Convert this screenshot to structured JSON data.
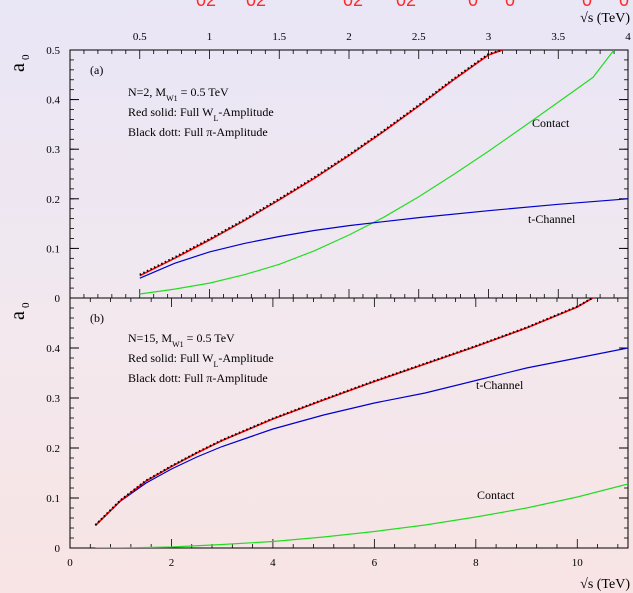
{
  "header_fragments": [
    "02",
    "02",
    "02",
    "02",
    "0",
    "0",
    "0",
    "0"
  ],
  "top_axis": {
    "label": "√s (TeV)",
    "ticks": [
      "0.5",
      "1",
      "1.5",
      "2",
      "2.5",
      "3",
      "3.5",
      "4"
    ]
  },
  "bottom_axis": {
    "label": "√s (TeV)",
    "ticks": [
      "0",
      "2",
      "4",
      "6",
      "8",
      "10"
    ]
  },
  "colors": {
    "red": "#ff0000",
    "black": "#000000",
    "blue": "#0000cc",
    "green": "#22dd22"
  },
  "chart_data": [
    {
      "type": "line",
      "panel": "a",
      "ylabel": "a",
      "ylabel_sub": "0",
      "xlim": [
        0,
        4
      ],
      "ylim": [
        0,
        0.5
      ],
      "yticks": [
        "0",
        "0.1",
        "0.2",
        "0.3",
        "0.4",
        "0.5"
      ],
      "panel_label": "(a)",
      "info_lines": [
        [
          "N=2, M",
          "W1",
          " = 0.5 TeV"
        ],
        [
          "Red solid: Full W",
          "L",
          "-Amplitude"
        ],
        [
          "Black dott: Full π-Amplitude",
          "",
          ""
        ]
      ],
      "curve_labels": {
        "contact": "Contact",
        "tchannel": "t-Channel"
      },
      "series": [
        {
          "key": "red",
          "x": [
            0.5,
            0.75,
            1.0,
            1.25,
            1.5,
            1.75,
            2.0,
            2.25,
            2.5,
            2.75,
            3.0,
            3.1
          ],
          "y": [
            0.045,
            0.08,
            0.117,
            0.156,
            0.198,
            0.241,
            0.287,
            0.336,
            0.387,
            0.44,
            0.49,
            0.5
          ]
        },
        {
          "key": "black",
          "x": [
            0.5,
            0.75,
            1.0,
            1.25,
            1.5,
            1.75,
            2.0,
            2.25,
            2.5,
            2.75,
            3.0,
            3.1
          ],
          "y": [
            0.047,
            0.082,
            0.119,
            0.158,
            0.2,
            0.243,
            0.289,
            0.338,
            0.389,
            0.442,
            0.492,
            0.5
          ]
        },
        {
          "key": "blue",
          "x": [
            0.5,
            0.75,
            1.0,
            1.25,
            1.5,
            1.75,
            2.0,
            2.5,
            3.0,
            3.5,
            4.0
          ],
          "y": [
            0.04,
            0.07,
            0.093,
            0.11,
            0.124,
            0.136,
            0.146,
            0.162,
            0.176,
            0.189,
            0.2
          ]
        },
        {
          "key": "green",
          "x": [
            0.5,
            0.75,
            1.0,
            1.25,
            1.5,
            1.75,
            2.0,
            2.25,
            2.5,
            2.75,
            3.0,
            3.25,
            3.5,
            3.75,
            3.9
          ],
          "y": [
            0.008,
            0.018,
            0.03,
            0.047,
            0.068,
            0.095,
            0.127,
            0.163,
            0.204,
            0.249,
            0.296,
            0.345,
            0.395,
            0.445,
            0.5
          ]
        }
      ]
    },
    {
      "type": "line",
      "panel": "b",
      "ylabel": "a",
      "ylabel_sub": "0",
      "xlim": [
        0,
        11
      ],
      "ylim": [
        0,
        0.5
      ],
      "yticks": [
        "0",
        "0.1",
        "0.2",
        "0.3",
        "0.4"
      ],
      "panel_label": "(b)",
      "info_lines": [
        [
          "N=15, M",
          "W1",
          " = 0.5 TeV"
        ],
        [
          "Red solid: Full W",
          "L",
          "-Amplitude"
        ],
        [
          "Black dott: Full π-Amplitude",
          "",
          ""
        ]
      ],
      "curve_labels": {
        "contact": "Contact",
        "tchannel": "t-Channel"
      },
      "series": [
        {
          "key": "red",
          "x": [
            0.5,
            1,
            1.5,
            2,
            2.5,
            3,
            4,
            5,
            6,
            7,
            8,
            9,
            10,
            10.3
          ],
          "y": [
            0.045,
            0.095,
            0.134,
            0.163,
            0.19,
            0.215,
            0.258,
            0.296,
            0.333,
            0.368,
            0.403,
            0.44,
            0.482,
            0.5
          ]
        },
        {
          "key": "black",
          "x": [
            0.5,
            1,
            1.5,
            2,
            2.5,
            3,
            4,
            5,
            6,
            7,
            8,
            9,
            10,
            10.3
          ],
          "y": [
            0.046,
            0.096,
            0.135,
            0.164,
            0.191,
            0.216,
            0.259,
            0.297,
            0.334,
            0.369,
            0.404,
            0.441,
            0.483,
            0.5
          ]
        },
        {
          "key": "blue",
          "x": [
            0.5,
            1,
            1.5,
            2,
            2.5,
            3,
            4,
            5,
            6,
            7,
            8,
            9,
            10,
            11
          ],
          "y": [
            0.045,
            0.094,
            0.13,
            0.158,
            0.182,
            0.203,
            0.238,
            0.266,
            0.29,
            0.31,
            0.335,
            0.36,
            0.38,
            0.4
          ]
        },
        {
          "key": "green",
          "x": [
            0.5,
            1,
            2,
            3,
            4,
            5,
            6,
            7,
            8,
            9,
            10,
            11
          ],
          "y": [
            0.0,
            0.0,
            0.002,
            0.007,
            0.013,
            0.022,
            0.033,
            0.046,
            0.062,
            0.08,
            0.102,
            0.128
          ]
        }
      ]
    }
  ]
}
